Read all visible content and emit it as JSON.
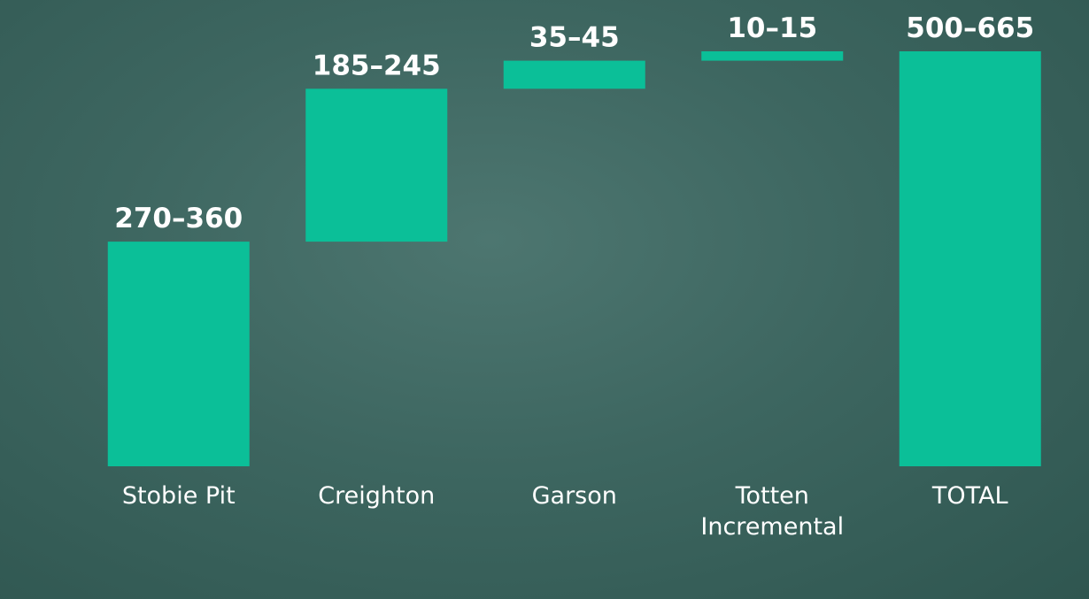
{
  "chart_data": {
    "type": "waterfall",
    "categories": [
      "Stobie Pit",
      "Creighton",
      "Garson",
      "Totten Incremental",
      "TOTAL"
    ],
    "values": [
      360,
      245,
      45,
      15,
      665
    ],
    "value_labels": [
      "270–360",
      "185–245",
      "35–45",
      "10–15",
      "500–665"
    ],
    "color": "#0bbf98"
  }
}
